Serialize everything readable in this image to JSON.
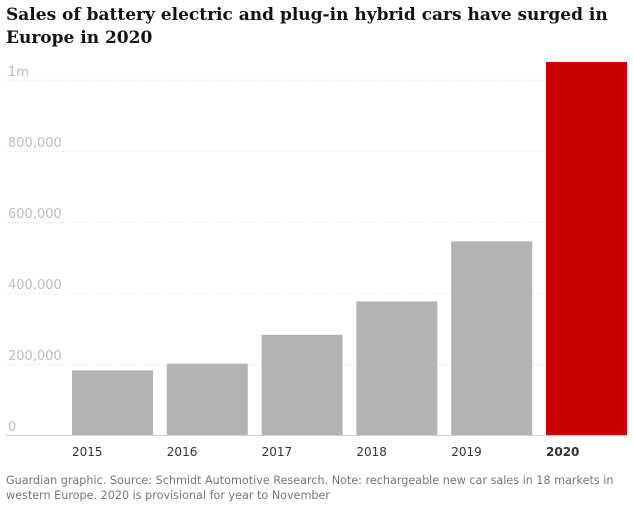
{
  "chart_data": {
    "type": "bar",
    "title": "Sales of battery electric and plug-in hybrid cars have surged in Europe in 2020",
    "categories": [
      "2015",
      "2016",
      "2017",
      "2018",
      "2019",
      "2020"
    ],
    "values": [
      182000,
      201000,
      282000,
      376000,
      545000,
      1050000
    ],
    "highlight_category": "2020",
    "xlabel": "",
    "ylabel": "",
    "ylim": [
      0,
      1050000
    ],
    "yticks": [
      0,
      200000,
      400000,
      600000,
      800000,
      1000000
    ],
    "ytick_labels": [
      "0",
      "200,000",
      "400,000",
      "600,000",
      "800,000",
      "1m"
    ],
    "grid": true,
    "colors": {
      "bar": "#b3b3b4",
      "highlight": "#c70000",
      "grid": "#dcdcdc",
      "tick_label": "#bdbdbd",
      "x_label": "#333333"
    }
  },
  "footnote": "Guardian graphic. Source: Schmidt Automotive Research. Note: rechargeable new car sales in 18 markets in western Europe. 2020 is provisional for year to November"
}
